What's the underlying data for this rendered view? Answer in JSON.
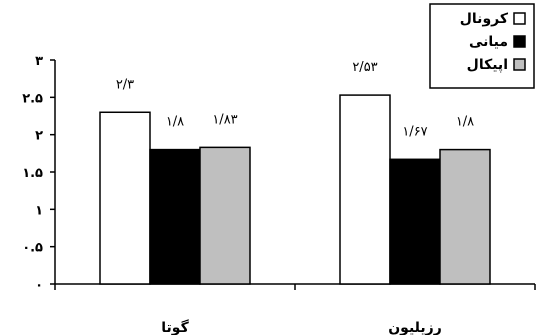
{
  "chart_data": {
    "type": "bar",
    "categories": [
      "گوتا",
      "رزیلیون"
    ],
    "series": [
      {
        "name": "کرونال",
        "values": [
          2.3,
          2.53
        ],
        "labels": [
          "۲/۳",
          "۲/۵۳"
        ],
        "color": "#ffffff"
      },
      {
        "name": "میانی",
        "values": [
          1.8,
          1.67
        ],
        "labels": [
          "۱/۸",
          "۱/۶۷"
        ],
        "color": "#000000"
      },
      {
        "name": "اپیکال",
        "values": [
          1.83,
          1.8
        ],
        "labels": [
          "۱/۸۳",
          "۱/۸"
        ],
        "color": "#bfbfbf"
      }
    ],
    "yticks": [
      {
        "value": 0,
        "label": "۰"
      },
      {
        "value": 0.5,
        "label": "۰.۵"
      },
      {
        "value": 1,
        "label": "۱"
      },
      {
        "value": 1.5,
        "label": "۱.۵"
      },
      {
        "value": 2,
        "label": "۲"
      },
      {
        "value": 2.5,
        "label": "۲.۵"
      },
      {
        "value": 3,
        "label": "۳"
      }
    ],
    "ylim": [
      0,
      3
    ],
    "grid": false,
    "legend_position": "top-right"
  }
}
